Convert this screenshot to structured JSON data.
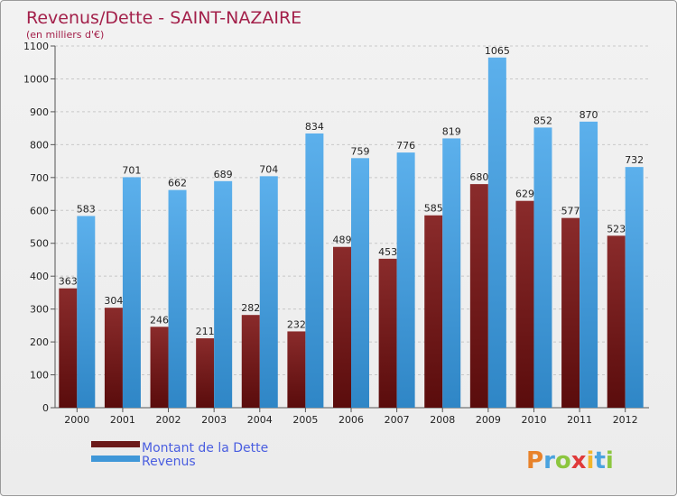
{
  "chart_data": {
    "type": "bar",
    "title": "Revenus/Dette - SAINT-NAZAIRE",
    "subtitle": "(en milliers d'€)",
    "categories": [
      "2000",
      "2001",
      "2002",
      "2003",
      "2004",
      "2005",
      "2006",
      "2007",
      "2008",
      "2009",
      "2010",
      "2011",
      "2012"
    ],
    "series": [
      {
        "name": "Montant de la Dette",
        "color": "#6b1a1a",
        "values": [
          363,
          304,
          246,
          211,
          282,
          232,
          489,
          453,
          585,
          680,
          629,
          577,
          523
        ]
      },
      {
        "name": "Revenus",
        "color": "#3f97d8",
        "values": [
          583,
          701,
          662,
          689,
          704,
          834,
          759,
          776,
          819,
          1065,
          852,
          870,
          732
        ]
      }
    ],
    "ylim": [
      0,
      1100
    ],
    "yticks": [
      0,
      100,
      200,
      300,
      400,
      500,
      600,
      700,
      800,
      900,
      1000,
      1100
    ],
    "grid": true,
    "legend_position": "bottom-left"
  },
  "logo_text": "Proxiti"
}
